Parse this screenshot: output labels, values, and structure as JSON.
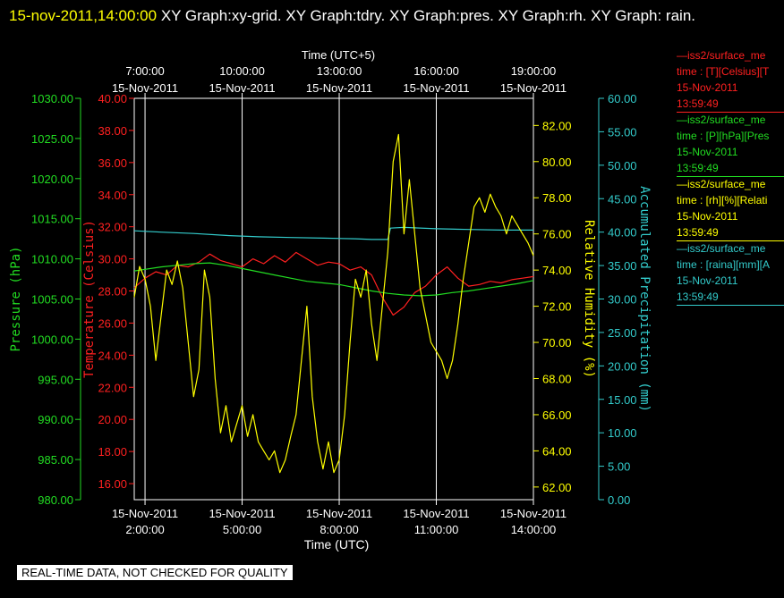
{
  "header": {
    "timestamp": "15-nov-2011,14:00:00",
    "graphs": " XY Graph:xy-grid.  XY Graph:tdry.  XY Graph:pres.  XY Graph:rh.  XY Graph: rain."
  },
  "notice": "REAL-TIME DATA, NOT CHECKED FOR QUALITY",
  "colors": {
    "temperature": "#ff2020",
    "pressure": "#22dd22",
    "humidity": "#ffff00",
    "rain": "#33cccc",
    "grid": "#ffffff"
  },
  "legend": [
    {
      "line1": "—iss2/surface_me",
      "line2": "time : [T][Celsius][T",
      "line3": "15-Nov-2011",
      "line4": "13:59:49",
      "color": "#ff2020"
    },
    {
      "line1": "—iss2/surface_me",
      "line2": "time : [P][hPa][Pres",
      "line3": "15-Nov-2011",
      "line4": "13:59:49",
      "color": "#22dd22"
    },
    {
      "line1": "—iss2/surface_me",
      "line2": "time : [rh][%][Relati",
      "line3": "15-Nov-2011",
      "line4": "13:59:49",
      "color": "#ffff00"
    },
    {
      "line1": "—iss2/surface_me",
      "line2": "time : [raina][mm][A",
      "line3": "15-Nov-2011",
      "line4": "13:59:49",
      "color": "#33cccc"
    }
  ],
  "chart_data": {
    "type": "line",
    "grid": true,
    "x_bottom": {
      "label": "Time (UTC)",
      "range": [
        "15-Nov-2011 01:40",
        "15-Nov-2011 14:00"
      ],
      "ticks": [
        {
          "t": "15-Nov-2011 02:00",
          "date": "15-Nov-2011",
          "time": "2:00:00"
        },
        {
          "t": "15-Nov-2011 05:00",
          "date": "15-Nov-2011",
          "time": "5:00:00"
        },
        {
          "t": "15-Nov-2011 08:00",
          "date": "15-Nov-2011",
          "time": "8:00:00"
        },
        {
          "t": "15-Nov-2011 11:00",
          "date": "15-Nov-2011",
          "time": "11:00:00"
        },
        {
          "t": "15-Nov-2011 14:00",
          "date": "15-Nov-2011",
          "time": "14:00:00"
        }
      ]
    },
    "x_top": {
      "label": "Time (UTC+5)",
      "ticks": [
        {
          "t": "15-Nov-2011 02:00",
          "time": "7:00:00",
          "date": "15-Nov-2011"
        },
        {
          "t": "15-Nov-2011 05:00",
          "time": "10:00:00",
          "date": "15-Nov-2011"
        },
        {
          "t": "15-Nov-2011 08:00",
          "time": "13:00:00",
          "date": "15-Nov-2011"
        },
        {
          "t": "15-Nov-2011 11:00",
          "time": "16:00:00",
          "date": "15-Nov-2011"
        },
        {
          "t": "15-Nov-2011 14:00",
          "time": "19:00:00",
          "date": "15-Nov-2011"
        }
      ]
    },
    "axes": [
      {
        "id": "pressure",
        "label": "Pressure (hPa)",
        "min": 980,
        "max": 1030,
        "ticks": [
          "1030.00",
          "1025.00",
          "1020.00",
          "1015.00",
          "1010.00",
          "1005.00",
          "1000.00",
          "995.00",
          "990.00",
          "985.00",
          "980.00"
        ]
      },
      {
        "id": "temperature",
        "label": "Temperature (Celsius)",
        "min": 15,
        "max": 40,
        "ticks": [
          "40.00",
          "38.00",
          "36.00",
          "34.00",
          "32.00",
          "30.00",
          "28.00",
          "26.00",
          "24.00",
          "22.00",
          "20.00",
          "18.00",
          "16.00"
        ]
      },
      {
        "id": "humidity",
        "label": "Relative Humidity (%)",
        "min": 61.3,
        "max": 83.5,
        "ticks": [
          "82.00",
          "80.00",
          "78.00",
          "76.00",
          "74.00",
          "72.00",
          "70.00",
          "68.00",
          "66.00",
          "64.00",
          "62.00"
        ]
      },
      {
        "id": "rain",
        "label": "Accumulated Precipitation (mm)",
        "min": 0,
        "max": 60,
        "ticks": [
          "60.00",
          "55.00",
          "50.00",
          "45.00",
          "40.00",
          "35.00",
          "30.00",
          "25.00",
          "20.00",
          "15.00",
          "10.00",
          "5.00",
          "0.00"
        ]
      }
    ],
    "series": [
      {
        "id": "temperature",
        "axis": "temperature",
        "color": "#ff2020",
        "points": [
          [
            "01:40",
            28.2
          ],
          [
            "02:00",
            28.8
          ],
          [
            "02:20",
            29.2
          ],
          [
            "02:40",
            29.0
          ],
          [
            "03:00",
            29.6
          ],
          [
            "03:20",
            29.5
          ],
          [
            "03:40",
            29.8
          ],
          [
            "04:00",
            30.3
          ],
          [
            "04:20",
            29.9
          ],
          [
            "04:40",
            29.7
          ],
          [
            "05:00",
            29.5
          ],
          [
            "05:20",
            30.0
          ],
          [
            "05:40",
            29.7
          ],
          [
            "06:00",
            30.2
          ],
          [
            "06:20",
            29.8
          ],
          [
            "06:40",
            30.4
          ],
          [
            "07:00",
            30.0
          ],
          [
            "07:20",
            29.6
          ],
          [
            "07:40",
            29.8
          ],
          [
            "08:00",
            29.7
          ],
          [
            "08:20",
            29.3
          ],
          [
            "08:40",
            29.5
          ],
          [
            "09:00",
            29.0
          ],
          [
            "09:20",
            27.6
          ],
          [
            "09:40",
            26.5
          ],
          [
            "10:00",
            27.0
          ],
          [
            "10:20",
            27.9
          ],
          [
            "10:40",
            28.3
          ],
          [
            "11:00",
            29.0
          ],
          [
            "11:20",
            29.5
          ],
          [
            "11:40",
            28.8
          ],
          [
            "12:00",
            28.3
          ],
          [
            "12:20",
            28.4
          ],
          [
            "12:40",
            28.6
          ],
          [
            "13:00",
            28.5
          ],
          [
            "13:20",
            28.7
          ],
          [
            "13:40",
            28.8
          ],
          [
            "14:00",
            28.9
          ]
        ]
      },
      {
        "id": "pressure",
        "axis": "pressure",
        "color": "#22dd22",
        "points": [
          [
            "01:40",
            1008.5
          ],
          [
            "02:00",
            1008.7
          ],
          [
            "02:30",
            1009.0
          ],
          [
            "03:00",
            1009.2
          ],
          [
            "03:30",
            1009.4
          ],
          [
            "04:00",
            1009.5
          ],
          [
            "04:30",
            1009.2
          ],
          [
            "05:00",
            1008.8
          ],
          [
            "05:30",
            1008.4
          ],
          [
            "06:00",
            1008.0
          ],
          [
            "06:30",
            1007.6
          ],
          [
            "07:00",
            1007.2
          ],
          [
            "07:30",
            1007.0
          ],
          [
            "08:00",
            1006.8
          ],
          [
            "08:30",
            1006.4
          ],
          [
            "09:00",
            1006.0
          ],
          [
            "09:30",
            1005.7
          ],
          [
            "10:00",
            1005.5
          ],
          [
            "10:30",
            1005.4
          ],
          [
            "11:00",
            1005.5
          ],
          [
            "11:30",
            1005.8
          ],
          [
            "12:00",
            1006.0
          ],
          [
            "12:30",
            1006.3
          ],
          [
            "13:00",
            1006.6
          ],
          [
            "13:30",
            1006.9
          ],
          [
            "14:00",
            1007.3
          ]
        ]
      },
      {
        "id": "rain",
        "axis": "rain",
        "color": "#33cccc",
        "points": [
          [
            "01:40",
            40.2
          ],
          [
            "02:30",
            40.0
          ],
          [
            "03:30",
            39.8
          ],
          [
            "04:30",
            39.5
          ],
          [
            "05:30",
            39.3
          ],
          [
            "06:30",
            39.2
          ],
          [
            "07:30",
            39.1
          ],
          [
            "08:30",
            39.0
          ],
          [
            "09:00",
            38.9
          ],
          [
            "09:30",
            38.9
          ],
          [
            "09:35",
            40.6
          ],
          [
            "10:00",
            40.7
          ],
          [
            "11:00",
            40.5
          ],
          [
            "12:00",
            40.4
          ],
          [
            "13:00",
            40.3
          ],
          [
            "14:00",
            40.3
          ]
        ]
      },
      {
        "id": "humidity",
        "axis": "humidity",
        "color": "#ffff00",
        "points": [
          [
            "01:40",
            72.5
          ],
          [
            "01:50",
            74.2
          ],
          [
            "02:00",
            73.5
          ],
          [
            "02:10",
            72.0
          ],
          [
            "02:20",
            69.0
          ],
          [
            "02:30",
            71.5
          ],
          [
            "02:40",
            74.0
          ],
          [
            "02:50",
            73.2
          ],
          [
            "03:00",
            74.5
          ],
          [
            "03:10",
            73.0
          ],
          [
            "03:20",
            70.0
          ],
          [
            "03:30",
            67.0
          ],
          [
            "03:40",
            68.5
          ],
          [
            "03:50",
            74.0
          ],
          [
            "04:00",
            72.5
          ],
          [
            "04:10",
            68.0
          ],
          [
            "04:20",
            65.0
          ],
          [
            "04:30",
            66.5
          ],
          [
            "04:40",
            64.5
          ],
          [
            "04:50",
            65.5
          ],
          [
            "05:00",
            66.5
          ],
          [
            "05:10",
            64.8
          ],
          [
            "05:20",
            66.0
          ],
          [
            "05:30",
            64.5
          ],
          [
            "05:40",
            64.0
          ],
          [
            "05:50",
            63.5
          ],
          [
            "06:00",
            64.0
          ],
          [
            "06:10",
            62.8
          ],
          [
            "06:20",
            63.5
          ],
          [
            "06:30",
            64.8
          ],
          [
            "06:40",
            66.0
          ],
          [
            "06:50",
            69.0
          ],
          [
            "07:00",
            72.0
          ],
          [
            "07:10",
            67.0
          ],
          [
            "07:20",
            64.5
          ],
          [
            "07:30",
            63.0
          ],
          [
            "07:40",
            64.5
          ],
          [
            "07:50",
            62.8
          ],
          [
            "08:00",
            63.5
          ],
          [
            "08:10",
            66.0
          ],
          [
            "08:20",
            70.0
          ],
          [
            "08:30",
            73.5
          ],
          [
            "08:40",
            72.5
          ],
          [
            "08:50",
            74.0
          ],
          [
            "09:00",
            71.0
          ],
          [
            "09:10",
            69.0
          ],
          [
            "09:20",
            72.0
          ],
          [
            "09:30",
            75.0
          ],
          [
            "09:40",
            80.0
          ],
          [
            "09:50",
            81.5
          ],
          [
            "10:00",
            76.0
          ],
          [
            "10:10",
            79.0
          ],
          [
            "10:20",
            76.0
          ],
          [
            "10:30",
            73.0
          ],
          [
            "10:40",
            71.5
          ],
          [
            "10:50",
            70.0
          ],
          [
            "11:00",
            69.5
          ],
          [
            "11:10",
            69.0
          ],
          [
            "11:20",
            68.0
          ],
          [
            "11:30",
            69.0
          ],
          [
            "11:40",
            71.0
          ],
          [
            "11:50",
            73.5
          ],
          [
            "12:00",
            75.5
          ],
          [
            "12:10",
            77.5
          ],
          [
            "12:20",
            78.0
          ],
          [
            "12:30",
            77.2
          ],
          [
            "12:40",
            78.2
          ],
          [
            "12:50",
            77.5
          ],
          [
            "13:00",
            77.0
          ],
          [
            "13:10",
            76.0
          ],
          [
            "13:20",
            77.0
          ],
          [
            "13:30",
            76.5
          ],
          [
            "13:40",
            76.0
          ],
          [
            "13:50",
            75.5
          ],
          [
            "14:00",
            74.8
          ]
        ]
      }
    ]
  }
}
